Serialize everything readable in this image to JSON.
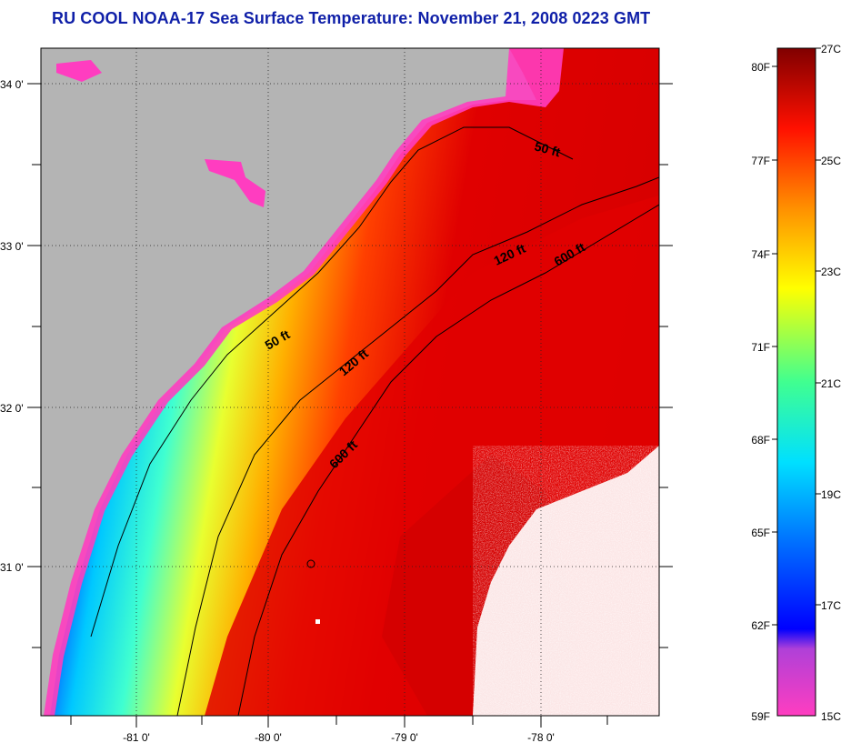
{
  "title": "RU COOL  NOAA-17  Sea Surface Temperature:  November 21, 2008 0223 GMT",
  "latitude_labels": [
    "34 0'",
    "33 0'",
    "32 0'",
    "31 0'"
  ],
  "longitude_labels": [
    "-81 0'",
    "-80 0'",
    "-79 0'",
    "-78 0'"
  ],
  "contour_labels": {
    "c50_north": "50 ft",
    "c50_south": "50 ft",
    "c120_north": "120 ft",
    "c120_south": "120 ft",
    "c600_north": "600 ft",
    "c600_south": "600 ft"
  },
  "colorbar": {
    "fahrenheit": [
      "80F",
      "77F",
      "74F",
      "71F",
      "68F",
      "65F",
      "62F",
      "59F"
    ],
    "celsius": [
      "27C",
      "25C",
      "23C",
      "21C",
      "19C",
      "17C",
      "15C"
    ]
  },
  "colors": {
    "land": "#b4b4b4",
    "title": "#0f1fa8",
    "cold": "#ff3dc0",
    "warm": "#e00000",
    "cloud": "#ffffff"
  }
}
